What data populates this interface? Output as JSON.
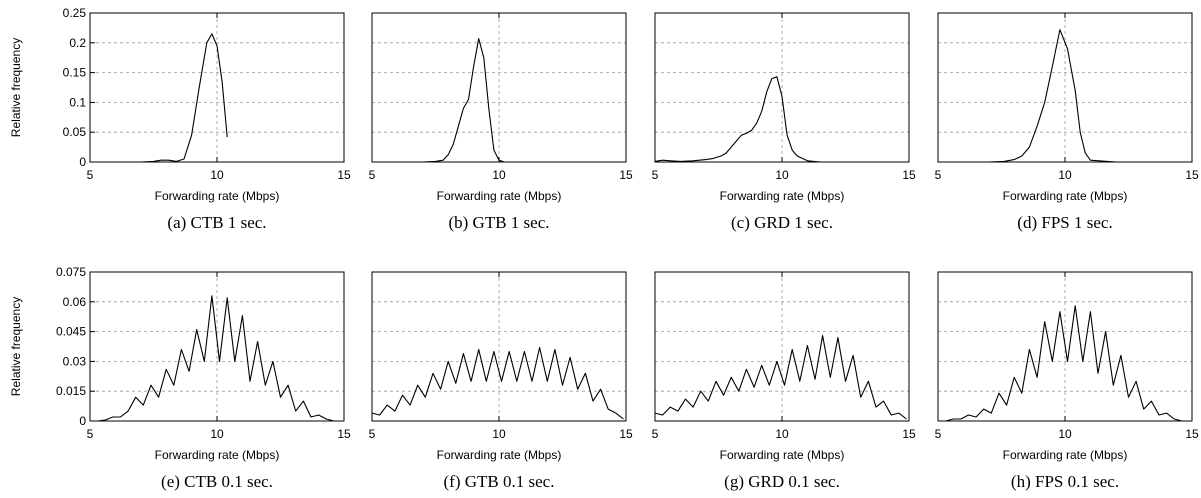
{
  "chart_data": [
    {
      "type": "line",
      "caption": "(a) CTB 1 sec.",
      "xlabel": "Forwarding rate (Mbps)",
      "ylabel": "Relative frequency",
      "xlim": [
        5,
        15
      ],
      "ylim": [
        0,
        0.25
      ],
      "xticks": [
        "5",
        "10",
        "15"
      ],
      "yticks": [
        "0",
        "0.05",
        "0.1",
        "0.15",
        "0.2",
        "0.25"
      ],
      "grid": true,
      "series": [
        {
          "x": [
            5.0,
            6.0,
            7.0,
            7.5,
            7.8,
            8.1,
            8.4,
            8.7,
            9.0,
            9.3,
            9.6,
            9.8,
            10.0,
            10.2,
            10.4
          ],
          "y": [
            0,
            0,
            0,
            0.001,
            0.003,
            0.003,
            0.001,
            0.005,
            0.045,
            0.125,
            0.2,
            0.215,
            0.195,
            0.135,
            0.042
          ]
        }
      ]
    },
    {
      "type": "line",
      "caption": "(b) GTB 1 sec.",
      "xlabel": "Forwarding rate (Mbps)",
      "ylabel": "",
      "xlim": [
        5,
        15
      ],
      "ylim": [
        0,
        0.25
      ],
      "xticks": [
        "5",
        "10",
        "15"
      ],
      "yticks": [],
      "grid": true,
      "series": [
        {
          "x": [
            5.0,
            6.0,
            7.0,
            7.5,
            7.8,
            8.0,
            8.2,
            8.4,
            8.6,
            8.8,
            9.0,
            9.2,
            9.4,
            9.6,
            9.8,
            10.0,
            10.2,
            10.4
          ],
          "y": [
            0,
            0,
            0,
            0.001,
            0.003,
            0.012,
            0.03,
            0.06,
            0.09,
            0.105,
            0.16,
            0.207,
            0.175,
            0.09,
            0.02,
            0.003,
            0,
            0
          ]
        }
      ]
    },
    {
      "type": "line",
      "caption": "(c) GRD 1 sec.",
      "xlabel": "Forwarding rate (Mbps)",
      "ylabel": "",
      "xlim": [
        5,
        15
      ],
      "ylim": [
        0,
        0.25
      ],
      "xticks": [
        "5",
        "10",
        "15"
      ],
      "yticks": [],
      "grid": true,
      "series": [
        {
          "x": [
            5.0,
            5.3,
            5.6,
            6.0,
            6.5,
            7.0,
            7.3,
            7.6,
            7.8,
            8.0,
            8.2,
            8.4,
            8.6,
            8.8,
            9.0,
            9.2,
            9.4,
            9.6,
            9.8,
            10.0,
            10.2,
            10.4,
            10.6,
            10.8,
            11.0,
            11.5,
            12.0,
            13.0,
            15.0
          ],
          "y": [
            0.001,
            0.003,
            0.002,
            0.001,
            0.002,
            0.004,
            0.006,
            0.01,
            0.015,
            0.025,
            0.035,
            0.045,
            0.048,
            0.053,
            0.065,
            0.085,
            0.118,
            0.14,
            0.143,
            0.11,
            0.045,
            0.02,
            0.01,
            0.006,
            0.002,
            0,
            0,
            0,
            0
          ]
        }
      ]
    },
    {
      "type": "line",
      "caption": "(d) FPS 1 sec.",
      "xlabel": "Forwarding rate (Mbps)",
      "ylabel": "",
      "xlim": [
        5,
        15
      ],
      "ylim": [
        0,
        0.25
      ],
      "xticks": [
        "5",
        "10",
        "15"
      ],
      "yticks": [],
      "grid": true,
      "series": [
        {
          "x": [
            5.0,
            6.0,
            7.0,
            7.6,
            8.0,
            8.3,
            8.6,
            8.9,
            9.2,
            9.5,
            9.8,
            10.1,
            10.4,
            10.6,
            10.8,
            11.0,
            12.0
          ],
          "y": [
            0,
            0,
            0,
            0.001,
            0.004,
            0.01,
            0.025,
            0.06,
            0.1,
            0.16,
            0.222,
            0.19,
            0.12,
            0.05,
            0.015,
            0.003,
            0
          ]
        }
      ]
    },
    {
      "type": "line",
      "caption": "(e) CTB 0.1 sec.",
      "xlabel": "Forwarding rate (Mbps)",
      "ylabel": "Relative frequency",
      "xlim": [
        5,
        15
      ],
      "ylim": [
        0,
        0.075
      ],
      "xticks": [
        "5",
        "10",
        "15"
      ],
      "yticks": [
        "0",
        "0.015",
        "0.03",
        "0.045",
        "0.06",
        "0.075"
      ],
      "grid": true,
      "series": [
        {
          "x": [
            5.0,
            5.3,
            5.6,
            5.9,
            6.2,
            6.5,
            6.8,
            7.1,
            7.4,
            7.7,
            8.0,
            8.3,
            8.6,
            8.9,
            9.2,
            9.5,
            9.8,
            10.1,
            10.4,
            10.7,
            11.0,
            11.3,
            11.6,
            11.9,
            12.2,
            12.5,
            12.8,
            13.1,
            13.4,
            13.7,
            14.0,
            14.3,
            14.6,
            14.9
          ],
          "y": [
            0.0,
            0.0,
            0.0005,
            0.002,
            0.002,
            0.005,
            0.012,
            0.008,
            0.018,
            0.012,
            0.026,
            0.018,
            0.036,
            0.025,
            0.046,
            0.03,
            0.063,
            0.03,
            0.062,
            0.03,
            0.053,
            0.02,
            0.04,
            0.018,
            0.03,
            0.012,
            0.018,
            0.005,
            0.01,
            0.002,
            0.003,
            0.001,
            0.0,
            0.0
          ]
        }
      ]
    },
    {
      "type": "line",
      "caption": "(f) GTB 0.1 sec.",
      "xlabel": "Forwarding rate (Mbps)",
      "ylabel": "",
      "xlim": [
        5,
        15
      ],
      "ylim": [
        0,
        0.075
      ],
      "xticks": [
        "5",
        "10",
        "15"
      ],
      "yticks": [],
      "grid": true,
      "series": [
        {
          "x": [
            5.0,
            5.3,
            5.6,
            5.9,
            6.2,
            6.5,
            6.8,
            7.1,
            7.4,
            7.7,
            8.0,
            8.3,
            8.6,
            8.9,
            9.2,
            9.5,
            9.8,
            10.1,
            10.4,
            10.7,
            11.0,
            11.3,
            11.6,
            11.9,
            12.2,
            12.5,
            12.8,
            13.1,
            13.4,
            13.7,
            14.0,
            14.3,
            14.6,
            14.9
          ],
          "y": [
            0.004,
            0.003,
            0.008,
            0.005,
            0.013,
            0.008,
            0.018,
            0.012,
            0.024,
            0.016,
            0.03,
            0.019,
            0.034,
            0.02,
            0.036,
            0.02,
            0.035,
            0.02,
            0.035,
            0.02,
            0.035,
            0.02,
            0.037,
            0.02,
            0.036,
            0.018,
            0.032,
            0.016,
            0.024,
            0.01,
            0.016,
            0.006,
            0.004,
            0.001
          ]
        }
      ]
    },
    {
      "type": "line",
      "caption": "(g) GRD 0.1 sec.",
      "xlabel": "Forwarding rate (Mbps)",
      "ylabel": "",
      "xlim": [
        5,
        15
      ],
      "ylim": [
        0,
        0.075
      ],
      "xticks": [
        "5",
        "10",
        "15"
      ],
      "yticks": [],
      "grid": true,
      "series": [
        {
          "x": [
            5.0,
            5.3,
            5.6,
            5.9,
            6.2,
            6.5,
            6.8,
            7.1,
            7.4,
            7.7,
            8.0,
            8.3,
            8.6,
            8.9,
            9.2,
            9.5,
            9.8,
            10.1,
            10.4,
            10.7,
            11.0,
            11.3,
            11.6,
            11.9,
            12.2,
            12.5,
            12.8,
            13.1,
            13.4,
            13.7,
            14.0,
            14.3,
            14.6,
            14.9
          ],
          "y": [
            0.004,
            0.003,
            0.007,
            0.005,
            0.011,
            0.007,
            0.015,
            0.01,
            0.02,
            0.013,
            0.022,
            0.015,
            0.026,
            0.017,
            0.028,
            0.018,
            0.03,
            0.018,
            0.036,
            0.02,
            0.038,
            0.021,
            0.043,
            0.022,
            0.042,
            0.02,
            0.033,
            0.012,
            0.02,
            0.007,
            0.01,
            0.003,
            0.004,
            0.001
          ]
        }
      ]
    },
    {
      "type": "line",
      "caption": "(h) FPS 0.1 sec.",
      "xlabel": "Forwarding rate (Mbps)",
      "ylabel": "",
      "xlim": [
        5,
        15
      ],
      "ylim": [
        0,
        0.075
      ],
      "xticks": [
        "5",
        "10",
        "15"
      ],
      "yticks": [],
      "grid": true,
      "series": [
        {
          "x": [
            5.0,
            5.3,
            5.6,
            5.9,
            6.2,
            6.5,
            6.8,
            7.1,
            7.4,
            7.7,
            8.0,
            8.3,
            8.6,
            8.9,
            9.2,
            9.5,
            9.8,
            10.1,
            10.4,
            10.7,
            11.0,
            11.3,
            11.6,
            11.9,
            12.2,
            12.5,
            12.8,
            13.1,
            13.4,
            13.7,
            14.0,
            14.3,
            14.6,
            14.9
          ],
          "y": [
            0.0,
            0.0,
            0.001,
            0.001,
            0.003,
            0.002,
            0.006,
            0.004,
            0.014,
            0.008,
            0.022,
            0.014,
            0.036,
            0.022,
            0.05,
            0.03,
            0.055,
            0.03,
            0.058,
            0.03,
            0.055,
            0.024,
            0.045,
            0.018,
            0.033,
            0.012,
            0.02,
            0.006,
            0.01,
            0.003,
            0.004,
            0.001,
            0.0,
            0.0
          ]
        }
      ]
    }
  ]
}
